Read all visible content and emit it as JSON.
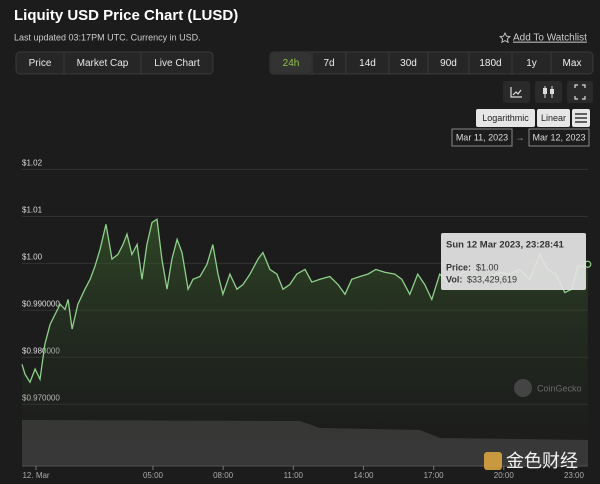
{
  "header": {
    "title": "Liquity USD Price Chart (LUSD)",
    "updated": "Last updated 03:17PM UTC. Currency in USD.",
    "watchlist": "Add To Watchlist"
  },
  "tabs": [
    "Price",
    "Market Cap",
    "Live Chart"
  ],
  "ranges": [
    {
      "label": "24h",
      "active": true
    },
    {
      "label": "7d"
    },
    {
      "label": "14d"
    },
    {
      "label": "30d"
    },
    {
      "label": "90d"
    },
    {
      "label": "180d"
    },
    {
      "label": "1y"
    },
    {
      "label": "Max"
    }
  ],
  "scale_buttons": [
    "Logarithmic",
    "Linear"
  ],
  "date_range": {
    "from": "Mar 11, 2023",
    "to": "Mar 12, 2023"
  },
  "tooltip": {
    "time": "Sun 12 Mar 2023, 23:28:41",
    "price_label": "Price:",
    "price": "$1.00",
    "vol_label": "Vol:",
    "vol": "$33,429,619"
  },
  "watermarks": [
    "CoinGecko",
    "金色财经"
  ],
  "chart_data": {
    "type": "line",
    "x": [
      -0.6,
      -0.47,
      -0.26,
      -0.04,
      0.17,
      0.38,
      0.6,
      0.81,
      1.03,
      1.24,
      1.37,
      1.54,
      1.79,
      2.09,
      2.31,
      2.52,
      2.74,
      2.99,
      3.25,
      3.5,
      3.72,
      3.89,
      4.1,
      4.32,
      4.53,
      4.74,
      4.96,
      5.17,
      5.38,
      5.6,
      5.81,
      6.03,
      6.24,
      6.5,
      6.71,
      7.01,
      7.31,
      7.56,
      7.78,
      7.99,
      8.29,
      8.59,
      8.85,
      9.15,
      9.49,
      9.7,
      10.0,
      10.3,
      10.56,
      10.85,
      11.15,
      11.5,
      11.79,
      12.14,
      12.56,
      12.91,
      13.21,
      13.5,
      13.85,
      14.19,
      14.53,
      14.91,
      15.34,
      15.64,
      15.98,
      16.32,
      16.62,
      16.92,
      17.26,
      17.69,
      18.12,
      18.55,
      18.97,
      19.4,
      19.83,
      20.26,
      20.68,
      21.11,
      21.54,
      21.88,
      22.22,
      22.61,
      22.91,
      23.16,
      23.46,
      23.59
    ],
    "series": [
      {
        "color": "#8fd08a",
        "values": [
          0.9785,
          0.9764,
          0.9747,
          0.9775,
          0.9753,
          0.9828,
          0.987,
          0.9891,
          0.9913,
          0.9902,
          0.9923,
          0.986,
          0.9913,
          0.9945,
          0.9966,
          0.9994,
          1.003,
          1.0083,
          1.0009,
          1.0019,
          1.004,
          1.0062,
          1.0019,
          1.004,
          0.9966,
          1.004,
          1.0087,
          1.0094,
          1.0009,
          0.9945,
          1.0009,
          1.0051,
          1.0023,
          0.9945,
          0.9966,
          0.9972,
          0.9998,
          1.004,
          0.9977,
          0.9934,
          0.9977,
          0.9945,
          0.9955,
          0.9977,
          1.0009,
          1.0023,
          0.9987,
          0.9977,
          0.9945,
          0.9955,
          0.9977,
          0.9987,
          0.996,
          0.9966,
          0.9972,
          0.9955,
          0.9934,
          0.9966,
          0.9972,
          0.9977,
          0.9987,
          0.9981,
          0.9977,
          0.9966,
          0.9934,
          0.9977,
          0.9955,
          0.9923,
          0.9977,
          0.9955,
          0.9977,
          0.9987,
          0.9966,
          0.9972,
          0.9981,
          0.9977,
          0.9987,
          0.9966,
          1.0019,
          0.9987,
          0.9977,
          0.9938,
          0.9945,
          0.9994,
          0.9994,
          0.9998
        ]
      }
    ],
    "xlim": [
      -0.6,
      23.6
    ],
    "xticks": [
      {
        "value": 0,
        "label": "12. Mar"
      },
      {
        "value": 5,
        "label": "05:00"
      },
      {
        "value": 8,
        "label": "08:00"
      },
      {
        "value": 11,
        "label": "11:00"
      },
      {
        "value": 14,
        "label": "14:00"
      },
      {
        "value": 17,
        "label": "17:00"
      },
      {
        "value": 20,
        "label": "20:00"
      },
      {
        "value": 23,
        "label": "23:00"
      }
    ],
    "ylim": [
      0.956,
      1.022
    ],
    "yticks": [
      {
        "value": 0.97,
        "label": "$0.970000"
      },
      {
        "value": 0.98,
        "label": "$0.980000"
      },
      {
        "value": 0.99,
        "label": "$0.990000"
      },
      {
        "value": 1.0,
        "label": "$1.00"
      },
      {
        "value": 1.01,
        "label": "$1.01"
      },
      {
        "value": 1.02,
        "label": "$1.02"
      }
    ],
    "grid": true
  }
}
